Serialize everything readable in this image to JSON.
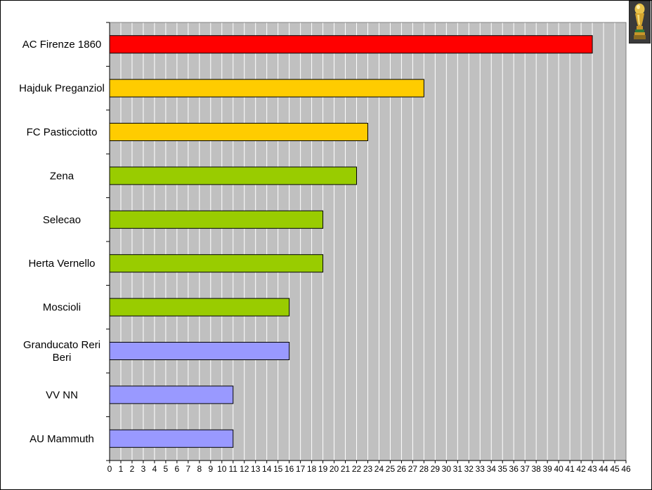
{
  "chart_data": {
    "type": "bar",
    "orientation": "horizontal",
    "categories": [
      "AC Firenze 1860",
      "Hajduk Preganziol",
      "FC Pasticciotto",
      "Zena",
      "Selecao",
      "Herta Vernello",
      "Moscioli",
      "Granducato Reri Beri",
      "VV NN",
      "AU Mammuth"
    ],
    "category_lines": [
      [
        "AC Firenze 1860"
      ],
      [
        "Hajduk Preganziol"
      ],
      [
        "FC Pasticciotto"
      ],
      [
        "Zena"
      ],
      [
        "Selecao"
      ],
      [
        "Herta Vernello"
      ],
      [
        "Moscioli"
      ],
      [
        "Granducato Reri",
        "Beri"
      ],
      [
        "VV NN"
      ],
      [
        "AU Mammuth"
      ]
    ],
    "values": [
      43,
      28,
      23,
      22,
      19,
      19,
      16,
      16,
      11,
      11
    ],
    "bar_colors": [
      "#ff0000",
      "#ffcc00",
      "#ffcc00",
      "#99cc00",
      "#99cc00",
      "#99cc00",
      "#99cc00",
      "#9999ff",
      "#9999ff",
      "#9999ff"
    ],
    "xlim": [
      0,
      46
    ],
    "x_ticks": [
      0,
      1,
      2,
      3,
      4,
      5,
      6,
      7,
      8,
      9,
      10,
      11,
      12,
      13,
      14,
      15,
      16,
      17,
      18,
      19,
      20,
      21,
      22,
      23,
      24,
      25,
      26,
      27,
      28,
      29,
      30,
      31,
      32,
      33,
      34,
      35,
      36,
      37,
      38,
      39,
      40,
      41,
      42,
      43,
      44,
      45,
      46
    ],
    "grid": true,
    "plot_background": "#c0c0c0",
    "gridline_color": "#ffffff",
    "title": "",
    "xlabel": "",
    "ylabel": ""
  },
  "logo": {
    "icon": "world-cup-trophy-icon"
  }
}
